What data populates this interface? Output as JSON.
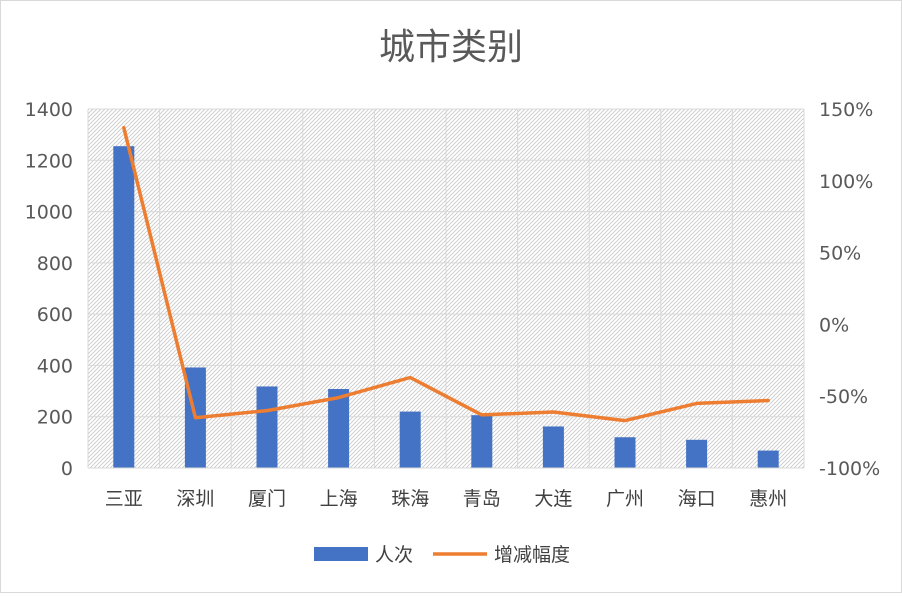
{
  "chart_data": {
    "type": "bar",
    "title": "城市类别",
    "categories": [
      "三亚",
      "深圳",
      "厦门",
      "上海",
      "珠海",
      "青岛",
      "大连",
      "广州",
      "海口",
      "惠州"
    ],
    "series": [
      {
        "name": "人次",
        "type": "bar",
        "axis": "left",
        "color": "#4472C4",
        "values": [
          1255,
          392,
          318,
          308,
          220,
          206,
          162,
          120,
          110,
          68
        ]
      },
      {
        "name": "增减幅度",
        "type": "line",
        "axis": "right",
        "color": "#ED7D31",
        "values": [
          1.37,
          -0.65,
          -0.6,
          -0.51,
          -0.37,
          -0.63,
          -0.61,
          -0.67,
          -0.55,
          -0.53
        ]
      }
    ],
    "y_left": {
      "min": 0,
      "max": 1400,
      "ticks": [
        "0",
        "200",
        "400",
        "600",
        "800",
        "1000",
        "1200",
        "1400"
      ]
    },
    "y_right": {
      "min": -1.0,
      "max": 1.5,
      "ticks": [
        "-100%",
        "-50%",
        "0%",
        "50%",
        "100%",
        "150%"
      ]
    },
    "grid": true,
    "plot_pattern": "diagonal-hatch",
    "legend_position": "bottom"
  }
}
